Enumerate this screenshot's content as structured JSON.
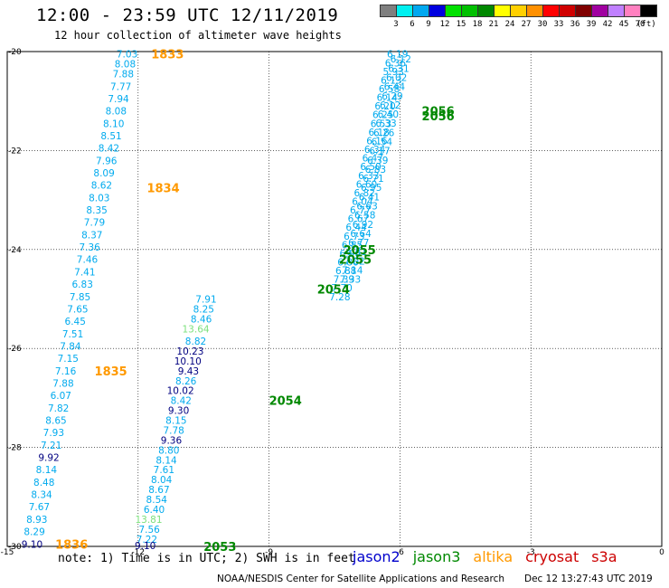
{
  "header": {
    "title": "12:00 - 23:59 UTC 12/11/2019",
    "subtitle": "12 hour collection of altimeter wave heights"
  },
  "legend": {
    "unit": "(ft)",
    "swatches": [
      {
        "label": "3",
        "color": "#7f7f7f"
      },
      {
        "label": "6",
        "color": "#00f0f0"
      },
      {
        "label": "9",
        "color": "#00a8f0"
      },
      {
        "label": "12",
        "color": "#0000e0"
      },
      {
        "label": "15",
        "color": "#00e000"
      },
      {
        "label": "18",
        "color": "#00c000"
      },
      {
        "label": "21",
        "color": "#008800"
      },
      {
        "label": "24",
        "color": "#ffff00"
      },
      {
        "label": "27",
        "color": "#ffd000"
      },
      {
        "label": "30",
        "color": "#ff9000"
      },
      {
        "label": "33",
        "color": "#ff0000"
      },
      {
        "label": "36",
        "color": "#d00000"
      },
      {
        "label": "39",
        "color": "#800000"
      },
      {
        "label": "42",
        "color": "#a000a0"
      },
      {
        "label": "45",
        "color": "#c080ff"
      },
      {
        "label": "70",
        "color": "#ff80c0"
      },
      {
        "label": "",
        "color": "#000000"
      }
    ]
  },
  "axes": {
    "lon_min": -15,
    "lon_max": 0,
    "lat_min": -30,
    "lat_max": -20,
    "x_ticks": [
      "-15",
      "-12",
      "-9",
      "-6",
      "-3",
      "0"
    ],
    "y_ticks": [
      "-20",
      "-22",
      "-24",
      "-26",
      "-28",
      "-30"
    ],
    "grid": true
  },
  "tracks": {
    "altika_left": [
      {
        "lat": -20.05,
        "v": "7.03"
      },
      {
        "lat": -20.25,
        "v": "8.08"
      },
      {
        "lat": -20.45,
        "v": "7.88"
      },
      {
        "lat": -20.7,
        "v": "7.77"
      },
      {
        "lat": -20.95,
        "v": "7.94"
      },
      {
        "lat": -21.2,
        "v": "8.08"
      },
      {
        "lat": -21.45,
        "v": "8.10"
      },
      {
        "lat": -21.7,
        "v": "8.51"
      },
      {
        "lat": -21.95,
        "v": "8.42"
      },
      {
        "lat": -22.2,
        "v": "7.96"
      },
      {
        "lat": -22.45,
        "v": "8.09"
      },
      {
        "lat": -22.7,
        "v": "8.62"
      },
      {
        "lat": -22.95,
        "v": "8.03"
      },
      {
        "lat": -23.2,
        "v": "8.35"
      },
      {
        "lat": -23.45,
        "v": "7.79"
      },
      {
        "lat": -23.7,
        "v": "8.37"
      },
      {
        "lat": -23.95,
        "v": "7.36"
      },
      {
        "lat": -24.2,
        "v": "7.46"
      },
      {
        "lat": -24.45,
        "v": "7.41"
      },
      {
        "lat": -24.7,
        "v": "6.83"
      },
      {
        "lat": -24.95,
        "v": "7.85"
      },
      {
        "lat": -25.2,
        "v": "7.65"
      },
      {
        "lat": -25.45,
        "v": "6.45"
      },
      {
        "lat": -25.7,
        "v": "7.51"
      },
      {
        "lat": -25.95,
        "v": "7.84"
      },
      {
        "lat": -26.2,
        "v": "7.15"
      },
      {
        "lat": -26.45,
        "v": "7.16"
      },
      {
        "lat": -26.7,
        "v": "7.88"
      },
      {
        "lat": -26.95,
        "v": "6.07"
      },
      {
        "lat": -27.2,
        "v": "7.82"
      },
      {
        "lat": -27.45,
        "v": "8.65"
      },
      {
        "lat": -27.7,
        "v": "7.93"
      },
      {
        "lat": -27.95,
        "v": "7.21"
      },
      {
        "lat": -28.2,
        "v": "9.92",
        "c": "#000080"
      },
      {
        "lat": -28.45,
        "v": "8.14"
      },
      {
        "lat": -28.7,
        "v": "8.48"
      },
      {
        "lat": -28.95,
        "v": "8.34"
      },
      {
        "lat": -29.2,
        "v": "7.67"
      },
      {
        "lat": -29.45,
        "v": "8.93"
      },
      {
        "lat": -29.7,
        "v": "8.29"
      },
      {
        "lat": -29.95,
        "v": "9.10",
        "c": "#000080"
      }
    ],
    "altika_left_lon": [
      -12.0,
      -14.2
    ],
    "jason3_left": [
      {
        "lat": -25.0,
        "v": "7.91"
      },
      {
        "lat": -25.2,
        "v": "8.25"
      },
      {
        "lat": -25.4,
        "v": "8.46"
      },
      {
        "lat": -25.6,
        "v": "13.64",
        "c": "#7ce07c"
      },
      {
        "lat": -25.85,
        "v": "8.82"
      },
      {
        "lat": -26.05,
        "v": "10.23",
        "c": "#000080"
      },
      {
        "lat": -26.25,
        "v": "10.10",
        "c": "#000080"
      },
      {
        "lat": -26.45,
        "v": "9.43",
        "c": "#000080"
      },
      {
        "lat": -26.65,
        "v": "8.26"
      },
      {
        "lat": -26.85,
        "v": "10.02",
        "c": "#000080"
      },
      {
        "lat": -27.05,
        "v": "8.42"
      },
      {
        "lat": -27.25,
        "v": "9.30",
        "c": "#000080"
      },
      {
        "lat": -27.45,
        "v": "8.15"
      },
      {
        "lat": -27.65,
        "v": "7.78"
      },
      {
        "lat": -27.85,
        "v": "9.36",
        "c": "#000080"
      },
      {
        "lat": -28.05,
        "v": "8.80"
      },
      {
        "lat": -28.25,
        "v": "8.14"
      },
      {
        "lat": -28.45,
        "v": "7.61"
      },
      {
        "lat": -28.65,
        "v": "8.04"
      },
      {
        "lat": -28.85,
        "v": "8.67"
      },
      {
        "lat": -29.05,
        "v": "8.54"
      },
      {
        "lat": -29.25,
        "v": "6.40"
      },
      {
        "lat": -29.45,
        "v": "13.81",
        "c": "#7ce07c"
      },
      {
        "lat": -29.65,
        "v": "7.56"
      },
      {
        "lat": -29.85,
        "v": "7.22"
      },
      {
        "lat": -29.98,
        "v": "9.10",
        "c": "#000080"
      }
    ],
    "jason3_left_lon": [
      -8.8,
      -11.6
    ],
    "jason3_right": [
      {
        "v": "6.19"
      },
      {
        "v": "6.36"
      },
      {
        "v": "5.93"
      },
      {
        "v": "6.13"
      },
      {
        "v": "6.58"
      },
      {
        "v": "6.14"
      },
      {
        "v": "6.20"
      },
      {
        "v": "6.25"
      },
      {
        "v": "6.53"
      },
      {
        "v": "6.18"
      },
      {
        "v": "6.16"
      },
      {
        "v": "6.34"
      },
      {
        "v": "6.47"
      },
      {
        "v": "6.50"
      },
      {
        "v": "6.33"
      },
      {
        "v": "6.60"
      },
      {
        "v": "6.82"
      },
      {
        "v": "6.04"
      },
      {
        "v": "6.77"
      },
      {
        "v": "6.67"
      },
      {
        "v": "6.44"
      },
      {
        "v": "6.73"
      },
      {
        "v": "6.85"
      },
      {
        "v": "6.96"
      },
      {
        "v": "6.86"
      },
      {
        "v": "6.88"
      },
      {
        "v": "7.39"
      },
      {
        "v": "7.70"
      },
      {
        "v": "7.28"
      }
    ],
    "jason3_right_lon": [
      -5.8,
      -8.5
    ],
    "jason3_right_lat": [
      -20.05,
      -24.95
    ],
    "jason3_second": [
      {
        "v": "6.12"
      },
      {
        "v": "6.31"
      },
      {
        "v": "6.02"
      },
      {
        "v": "6.44"
      },
      {
        "v": "6.29"
      },
      {
        "v": "6.12"
      },
      {
        "v": "6.40"
      },
      {
        "v": "6.33"
      },
      {
        "v": "6.26"
      },
      {
        "v": "6.54"
      },
      {
        "v": "6.17"
      },
      {
        "v": "6.39"
      },
      {
        "v": "6.83"
      },
      {
        "v": "6.71"
      },
      {
        "v": "6.95"
      },
      {
        "v": "6.41"
      },
      {
        "v": "6.63"
      },
      {
        "v": "6.58"
      },
      {
        "v": "6.92"
      },
      {
        "v": "6.64"
      },
      {
        "v": "6.77"
      },
      {
        "v": "6.81"
      },
      {
        "v": "7.02"
      },
      {
        "v": "7.14"
      },
      {
        "v": "7.33"
      }
    ],
    "jason3_second_lon": [
      -5.7,
      -8.3
    ],
    "jason3_second_lat": [
      -20.15,
      -24.6
    ]
  },
  "time_labels": [
    {
      "text": "1833",
      "lon": -11.7,
      "lat": -20.05,
      "color": "#ff9900"
    },
    {
      "text": "1834",
      "lon": -11.8,
      "lat": -22.75,
      "color": "#ff9900"
    },
    {
      "text": "1835",
      "lon": -13.0,
      "lat": -26.45,
      "color": "#ff9900"
    },
    {
      "text": "1836",
      "lon": -13.9,
      "lat": -29.95,
      "color": "#ff9900"
    },
    {
      "text": "2056",
      "lon": -5.5,
      "lat": -21.2,
      "color": "#008800"
    },
    {
      "text": "2056",
      "lon": -5.5,
      "lat": -21.3,
      "color": "#008800"
    },
    {
      "text": "2055",
      "lon": -7.3,
      "lat": -24.0,
      "color": "#008800"
    },
    {
      "text": "2055",
      "lon": -7.4,
      "lat": -24.2,
      "color": "#008800"
    },
    {
      "text": "2054",
      "lon": -7.9,
      "lat": -24.8,
      "color": "#008800"
    },
    {
      "text": "2054",
      "lon": -9.0,
      "lat": -27.05,
      "color": "#008800"
    },
    {
      "text": "2053",
      "lon": -10.5,
      "lat": -30.0,
      "color": "#008800"
    }
  ],
  "footer": {
    "note": "note: 1) Time is in UTC; 2) SWH is in feet",
    "satellites": [
      {
        "name": "jason2",
        "color": "#0000cc"
      },
      {
        "name": "jason3",
        "color": "#008800"
      },
      {
        "name": "altika",
        "color": "#ff9900"
      },
      {
        "name": "cryosat",
        "color": "#cc0000"
      },
      {
        "name": "s3a",
        "color": "#cc0000"
      }
    ],
    "credit": "NOAA/NESDIS Center for Satellite Applications and Research",
    "stamp": "Dec 12 13:27:43 UTC 2019"
  }
}
